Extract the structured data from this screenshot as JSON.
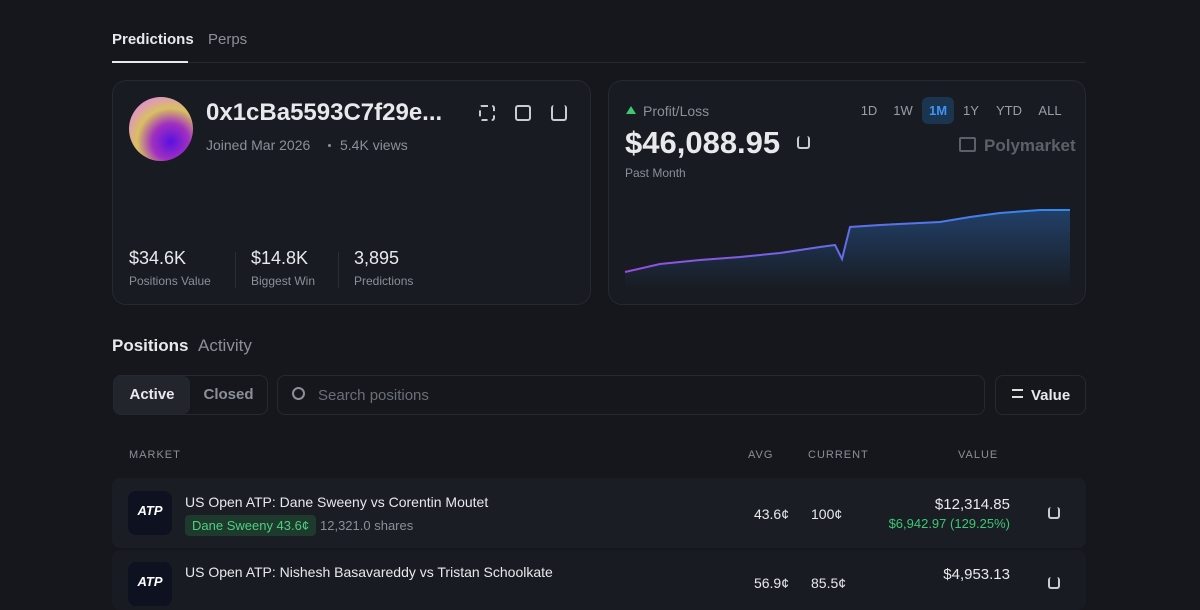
{
  "tabs": [
    "Predictions",
    "Perps"
  ],
  "profile": {
    "address": "0x1cBa5593C7f29e...",
    "joined": "Joined Mar 2026",
    "views": "5.4K views",
    "stats": [
      {
        "value": "$34.6K",
        "label": "Positions Value"
      },
      {
        "value": "$14.8K",
        "label": "Biggest Win"
      },
      {
        "value": "3,895",
        "label": "Predictions"
      }
    ]
  },
  "pnl": {
    "label": "Profit/Loss",
    "value": "$46,088.95",
    "period": "Past Month",
    "ranges": [
      "1D",
      "1W",
      "1M",
      "1Y",
      "YTD",
      "ALL"
    ],
    "active_range": 2,
    "brand": "Polymarket"
  },
  "sections": [
    "Positions",
    "Activity"
  ],
  "filters": [
    "Active",
    "Closed"
  ],
  "search_placeholder": "Search positions",
  "sort": "Value",
  "table": {
    "columns": [
      "MARKET",
      "AVG",
      "CURRENT",
      "VALUE"
    ],
    "rows": [
      {
        "icon": "ATP",
        "title": "US Open ATP: Dane Sweeny vs Corentin Moutet",
        "outcome": "Dane Sweeny 43.6¢",
        "shares": "12,321.0 shares",
        "avg": "43.6¢",
        "current": "100¢",
        "value": "$12,314.85",
        "pnl": "$6,942.97 (129.25%)"
      },
      {
        "icon": "ATP",
        "title": "US Open ATP: Nishesh Basavareddy vs Tristan Schoolkate",
        "avg": "56.9¢",
        "current": "85.5¢",
        "value": "$4,953.13"
      }
    ]
  }
}
